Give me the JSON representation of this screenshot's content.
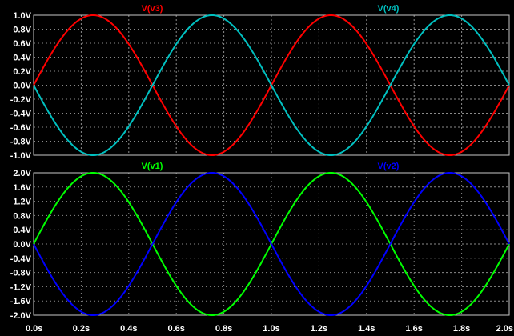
{
  "chart_data": {
    "type": "line",
    "x_range": [
      0.0,
      2.0
    ],
    "x_ticks": [
      "0.0s",
      "0.2s",
      "0.4s",
      "0.6s",
      "0.8s",
      "1.0s",
      "1.2s",
      "1.4s",
      "1.6s",
      "1.8s",
      "2.0s"
    ],
    "panes": [
      {
        "ylim": [
          -1.0,
          1.0
        ],
        "y_ticks": [
          "1.0V",
          "0.8V",
          "0.6V",
          "0.4V",
          "0.2V",
          "0.0V",
          "-0.2V",
          "-0.4V",
          "-0.6V",
          "-0.8V",
          "-1.0V"
        ],
        "series": [
          {
            "name": "V(v3)",
            "color": "#ff0000",
            "amplitude": 1.0,
            "frequency_hz": 1.0,
            "phase_deg": 0
          },
          {
            "name": "V(v4)",
            "color": "#00c0c0",
            "amplitude": 1.0,
            "frequency_hz": 1.0,
            "phase_deg": 180
          }
        ]
      },
      {
        "ylim": [
          -2.0,
          2.0
        ],
        "y_ticks": [
          "2.0V",
          "1.6V",
          "1.2V",
          "0.8V",
          "0.4V",
          "0.0V",
          "-0.4V",
          "-0.8V",
          "-1.2V",
          "-1.6V",
          "-2.0V"
        ],
        "series": [
          {
            "name": "V(v1)",
            "color": "#00ff00",
            "amplitude": 2.0,
            "frequency_hz": 1.0,
            "phase_deg": 0
          },
          {
            "name": "V(v2)",
            "color": "#0000ff",
            "amplitude": 2.0,
            "frequency_hz": 1.0,
            "phase_deg": 180
          }
        ]
      }
    ],
    "grid": true,
    "legend": "top"
  }
}
